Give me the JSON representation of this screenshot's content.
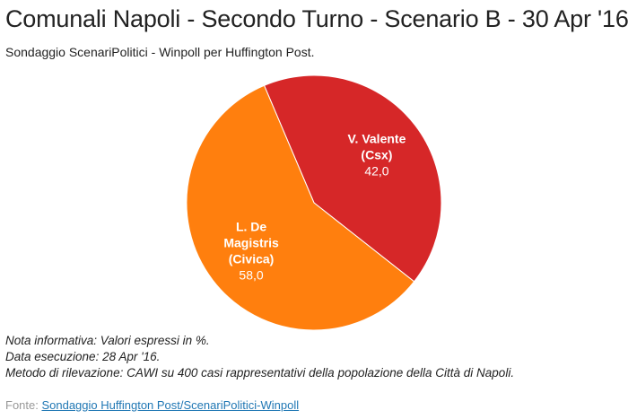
{
  "header": {
    "title": "Comunali Napoli - Secondo Turno - Scenario B - 30 Apr '16",
    "subtitle": "Sondaggio ScenariPolitici - Winpoll per Huffington Post."
  },
  "chart_data": {
    "type": "pie",
    "slices": [
      {
        "label_lines": [
          "V. Valente",
          "(Csx)"
        ],
        "value": 42.0,
        "value_label": "42,0",
        "color": "#d62728"
      },
      {
        "label_lines": [
          "L. De",
          "Magistris",
          "(Civica)"
        ],
        "value": 58.0,
        "value_label": "58,0",
        "color": "#ff7f0e"
      }
    ]
  },
  "notes": {
    "line1": "Nota informativa: Valori espressi in %.",
    "line2": "Data esecuzione: 28 Apr '16.",
    "line3": "Metodo di rilevazione: CAWI su 400 casi rappresentativi della popolazione della Città di Napoli."
  },
  "source": {
    "prefix": "Fonte: ",
    "link_text": "Sondaggio Huffington Post/ScenariPolitici-Winpoll"
  },
  "colors": {
    "slice_stroke": "#ffffff",
    "label_text": "#ffffff"
  }
}
